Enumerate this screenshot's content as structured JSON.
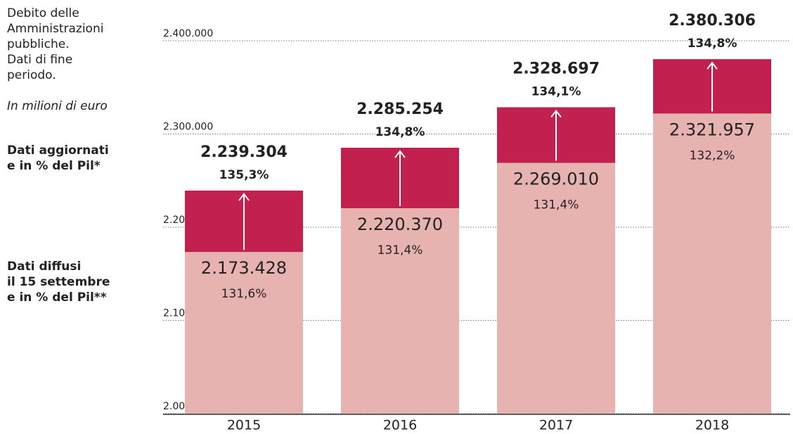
{
  "chart_data": {
    "type": "bar",
    "title": "Debito delle\nAmministrazioni\npubbliche.\nDati di fine\nperiodo.",
    "subtitle": "In milioni di euro",
    "categories": [
      "2015",
      "2016",
      "2017",
      "2018"
    ],
    "series": [
      {
        "name": "Dati aggiornati\ne in % del Pil*",
        "color": "#c2214f",
        "values": [
          2239304,
          2285254,
          2328697,
          2380306
        ],
        "value_labels": [
          "2.239.304",
          "2.285.254",
          "2.328.697",
          "2.380.306"
        ],
        "gdp_share_labels": [
          "135,3%",
          "134,8%",
          "134,1%",
          "134,8%"
        ]
      },
      {
        "name": "Dati diffusi\nil 15 settembre\ne in % del Pil**",
        "color": "#e7b3b1",
        "values": [
          2173428,
          2220370,
          2269010,
          2321957
        ],
        "value_labels": [
          "2.173.428",
          "2.220.370",
          "2.269.010",
          "2.321.957"
        ],
        "gdp_share_labels": [
          "131,6%",
          "131,4%",
          "131,4%",
          "132,2%"
        ]
      }
    ],
    "ylim": [
      2000000,
      2400000
    ],
    "yticks": [
      {
        "value": 2000000,
        "label": "2.000.000"
      },
      {
        "value": 2100000,
        "label": "2.100.000"
      },
      {
        "value": 2200000,
        "label": "2.200.000"
      },
      {
        "value": 2300000,
        "label": "2.300.000"
      },
      {
        "value": 2400000,
        "label": "2.400.000"
      }
    ],
    "grid": true
  }
}
